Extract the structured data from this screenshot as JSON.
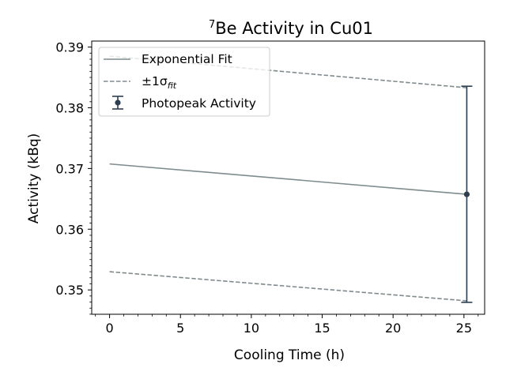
{
  "chart_data": {
    "type": "line",
    "title_sup": "7",
    "title": "Be Activity in Cu01",
    "xlabel": "Cooling Time (h)",
    "ylabel": "Activity (kBq)",
    "xlim": [
      -1.26,
      26.46
    ],
    "ylim": [
      0.34599,
      0.39099
    ],
    "xticks": [
      0,
      5,
      10,
      15,
      20,
      25
    ],
    "yticks": [
      0.35,
      0.36,
      0.37,
      0.38,
      0.39
    ],
    "xtick_labels": [
      "0",
      "5",
      "10",
      "15",
      "20",
      "25"
    ],
    "ytick_labels": [
      "0.35",
      "0.36",
      "0.37",
      "0.38",
      "0.39"
    ],
    "grid": false,
    "legend_position": "top-left",
    "series": [
      {
        "name": "Exponential Fit",
        "kind": "line",
        "style": "solid",
        "color": "#7f8c8d",
        "x": [
          0,
          25.2
        ],
        "y": [
          0.37075,
          0.36575
        ]
      },
      {
        "name": "±1σfit upper",
        "kind": "line",
        "style": "dashed",
        "color": "#7f8c8d",
        "x": [
          0,
          25.2
        ],
        "y": [
          0.3885,
          0.3833
        ]
      },
      {
        "name": "±1σfit lower",
        "kind": "line",
        "style": "dashed",
        "color": "#7f8c8d",
        "x": [
          0,
          25.2
        ],
        "y": [
          0.353,
          0.3482
        ]
      },
      {
        "name": "Photopeak Activity",
        "kind": "errorbar",
        "color": "#2c3e50",
        "x": [
          25.2
        ],
        "y": [
          0.36575
        ],
        "yerr": [
          0.0178
        ]
      }
    ],
    "legend": {
      "fit_label": "Exponential Fit",
      "sigma_prefix": "±1σ",
      "sigma_sub": "fit",
      "photopeak_label": "Photopeak Activity"
    }
  }
}
